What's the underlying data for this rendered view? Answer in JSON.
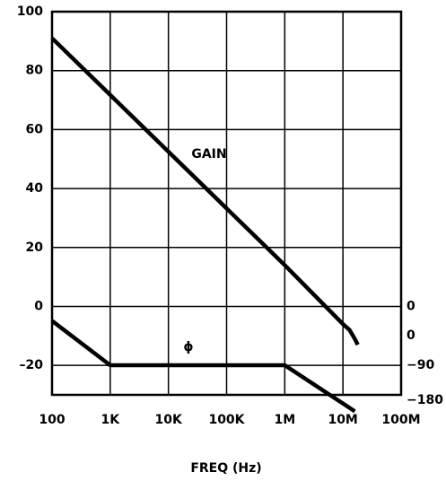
{
  "chart_data": {
    "type": "line",
    "xlabel": "FREQ (Hz)",
    "xscale": "log",
    "grid": true,
    "xlim": [
      100,
      100000000
    ],
    "xticks": [
      {
        "value": 100,
        "label": "100"
      },
      {
        "value": 1000,
        "label": "1K"
      },
      {
        "value": 10000,
        "label": "10K"
      },
      {
        "value": 100000,
        "label": "100K"
      },
      {
        "value": 1000000,
        "label": "1M"
      },
      {
        "value": 10000000,
        "label": "10M"
      },
      {
        "value": 100000000,
        "label": "100M"
      }
    ],
    "ylim": [
      -30,
      100
    ],
    "yticks": [
      {
        "value": -20,
        "label": "–20"
      },
      0,
      20,
      40,
      60,
      80,
      100
    ],
    "y2lim": [
      -180,
      985
    ],
    "y2ticks": [
      {
        "value": -180,
        "label": "−180"
      },
      {
        "value": -90,
        "label": "−90"
      },
      0
    ],
    "annotations": [
      "GAIN",
      "ϕ",
      "0"
    ],
    "series": [
      {
        "name": "GAIN",
        "color": "#000000",
        "x": [
          100,
          1000000,
          10000000,
          13000000,
          16000000,
          18000000
        ],
        "values": [
          91,
          14,
          -6,
          -8,
          -11,
          -13
        ]
      },
      {
        "name": "ϕ",
        "color": "#000000",
        "axis": "y2",
        "x": [
          100,
          1000,
          1000000,
          16000000
        ],
        "values": [
          45,
          -90,
          -90,
          -230
        ]
      }
    ]
  }
}
